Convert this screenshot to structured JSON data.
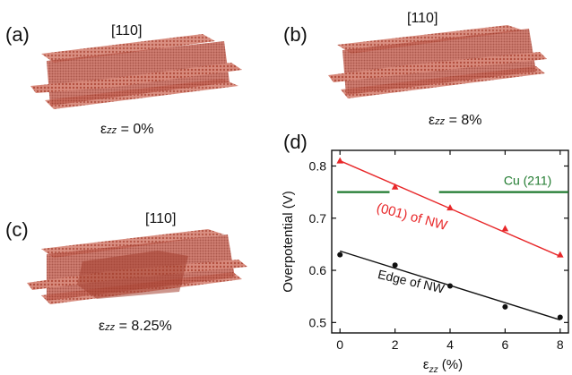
{
  "panels": {
    "a": {
      "label": "(a)",
      "direction": "[110]",
      "strain_symbol": "ε",
      "strain_sub": "zz",
      "strain_value": " = 0%"
    },
    "b": {
      "label": "(b)",
      "direction": "[110]",
      "strain_symbol": "ε",
      "strain_sub": "zz",
      "strain_value": " = 8%"
    },
    "c": {
      "label": "(c)",
      "direction": "[110]",
      "strain_symbol": "ε",
      "strain_sub": "zz",
      "strain_value": " = 8.25%"
    },
    "d": {
      "label": "(d)"
    }
  },
  "colors": {
    "nw_atoms": "#c96a5c",
    "series_red": "#e8282a",
    "series_black": "#111111",
    "cu_ref": "#1f7a2e"
  },
  "chart_data": {
    "type": "line",
    "xlabel": "ε",
    "xlabel_sub": "zz",
    "xlabel_unit": " (%)",
    "ylabel": "Overpotential (V)",
    "xlim": [
      -0.3,
      8.3
    ],
    "ylim": [
      0.48,
      0.83
    ],
    "xticks": [
      "0",
      "2",
      "4",
      "6",
      "8"
    ],
    "yticks": [
      "0.5",
      "0.6",
      "0.7",
      "0.8"
    ],
    "series": [
      {
        "name": "(001) of NW",
        "marker": "triangle",
        "color": "#e8282a",
        "x": [
          0,
          2,
          4,
          6,
          8
        ],
        "y": [
          0.81,
          0.76,
          0.72,
          0.68,
          0.63
        ],
        "fit": [
          [
            0,
            0.81
          ],
          [
            8,
            0.627
          ]
        ]
      },
      {
        "name": "Edge of NW",
        "marker": "circle",
        "color": "#111111",
        "x": [
          0,
          2,
          4,
          6,
          8
        ],
        "y": [
          0.63,
          0.61,
          0.57,
          0.53,
          0.51
        ],
        "fit": [
          [
            0,
            0.637
          ],
          [
            8,
            0.505
          ]
        ]
      }
    ],
    "reference": {
      "name": "Cu (211)",
      "y": 0.75,
      "color": "#1f7a2e",
      "segments": [
        [
          -0.1,
          1.8
        ],
        [
          3.6,
          8.3
        ]
      ]
    }
  }
}
